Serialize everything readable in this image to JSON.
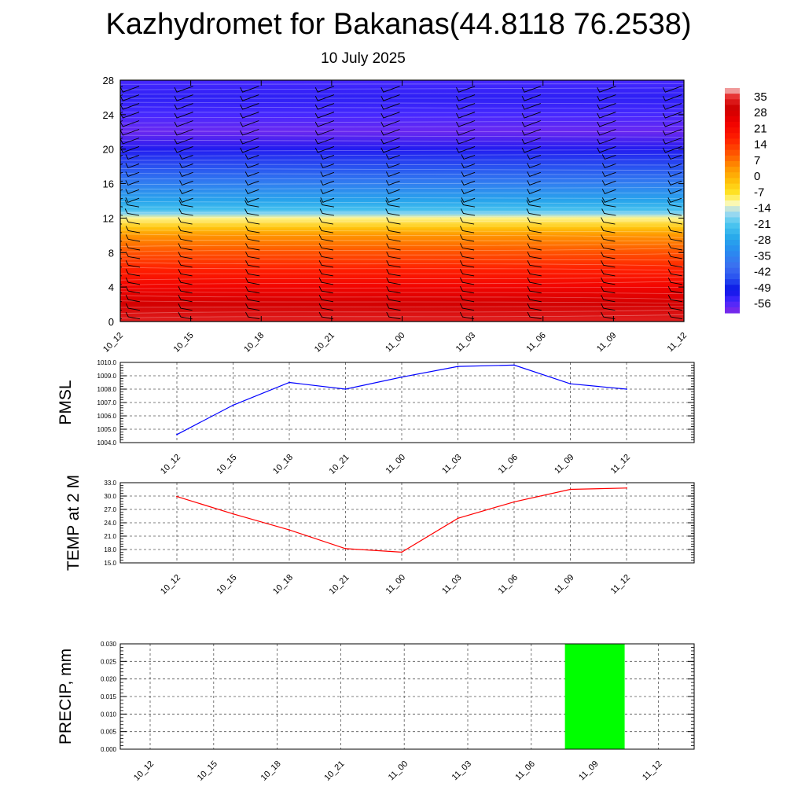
{
  "title": "Kazhydromet for Bakanas(44.8118 76.2538)",
  "subtitle": "10 July 2025",
  "chart_data": [
    {
      "type": "heatmap",
      "name": "vertical-temperature-wind-cross-section",
      "x_labels": [
        "10_12",
        "10_15",
        "10_18",
        "10_21",
        "11_00",
        "11_03",
        "11_06",
        "11_09",
        "11_12"
      ],
      "y_ticks": [
        0,
        4,
        8,
        12,
        16,
        20,
        24,
        28
      ],
      "ylim": [
        0,
        28
      ],
      "colorbar": {
        "labels": [
          "35",
          "28",
          "21",
          "14",
          "7",
          "0",
          "-7",
          "-14",
          "-21",
          "-28",
          "-35",
          "-42",
          "-49",
          "-56"
        ],
        "range": [
          -60,
          38
        ]
      },
      "temperature_profile": {
        "heights": [
          0,
          2,
          4,
          6,
          8,
          10,
          11,
          12,
          12.5,
          13,
          14,
          16,
          18,
          20,
          22,
          24,
          26,
          28
        ],
        "values": [
          33,
          28,
          22,
          16,
          10,
          3,
          -4,
          -11,
          -18,
          -23,
          -28,
          -36,
          -45,
          -52,
          -58,
          -55,
          -53,
          -55
        ]
      },
      "wind_barbs": true
    },
    {
      "type": "line",
      "name": "pmsl",
      "ylabel": "PMSL",
      "x": [
        "10_12",
        "10_15",
        "10_18",
        "10_21",
        "11_00",
        "11_03",
        "11_06",
        "11_09",
        "11_12"
      ],
      "y_ticks": [
        "1004.0",
        "1005.0",
        "1006.0",
        "1007.0",
        "1008.0",
        "1009.0",
        "1010.0"
      ],
      "ylim": [
        1004.0,
        1010.0
      ],
      "series": [
        {
          "values": [
            1004.6,
            1006.8,
            1008.5,
            1008.0,
            1008.9,
            1009.7,
            1009.8,
            1008.4,
            1008.0
          ],
          "color": "#0000ff"
        }
      ],
      "grid": true
    },
    {
      "type": "line",
      "name": "temp-2m",
      "ylabel": "TEMP at 2 M",
      "x": [
        "10_12",
        "10_15",
        "10_18",
        "10_21",
        "11_00",
        "11_03",
        "11_06",
        "11_09",
        "11_12"
      ],
      "y_ticks": [
        "15.0",
        "18.0",
        "21.0",
        "24.0",
        "27.0",
        "30.0",
        "33.0"
      ],
      "ylim": [
        15.0,
        33.0
      ],
      "series": [
        {
          "values": [
            29.9,
            26.0,
            22.4,
            18.2,
            17.4,
            25.0,
            28.7,
            31.5,
            31.8
          ],
          "color": "#ff0000"
        }
      ],
      "grid": true
    },
    {
      "type": "bar",
      "name": "precip",
      "ylabel": "PRECIP, mm",
      "categories": [
        "10_12",
        "10_15",
        "10_18",
        "10_21",
        "11_00",
        "11_03",
        "11_06",
        "11_09",
        "11_12"
      ],
      "values": [
        0,
        0,
        0,
        0,
        0,
        0,
        0,
        0.03,
        0
      ],
      "y_ticks": [
        "0.000",
        "0.005",
        "0.010",
        "0.015",
        "0.020",
        "0.025",
        "0.030"
      ],
      "ylim": [
        0,
        0.03
      ],
      "bar_color": "#00ff00",
      "grid": true
    }
  ]
}
